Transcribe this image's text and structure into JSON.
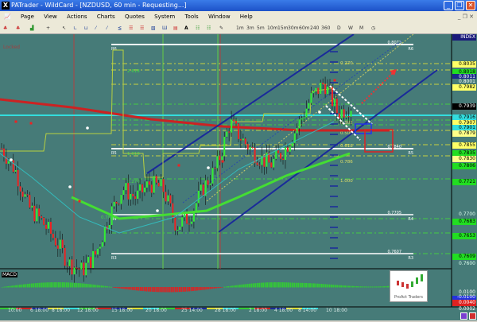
{
  "window": {
    "title": "PATrader - WildCard - [NZDUSD, 60 min - Requesting...]",
    "icon": "x-logo-icon"
  },
  "menu": [
    "Page",
    "View",
    "Actions",
    "Charts",
    "Quotes",
    "System",
    "Tools",
    "Window",
    "Help"
  ],
  "timeframes": [
    "1m",
    "3m",
    "5m",
    "10m",
    "15m",
    "30m",
    "60m",
    "240",
    "360",
    "D",
    "W",
    "M"
  ],
  "chart": {
    "symbol_label": "INDEX",
    "locked_label": "Locked",
    "background": "#467b78",
    "price_path": [
      0.7845,
      0.78,
      0.772,
      0.769,
      0.765,
      0.76,
      0.7585,
      0.762,
      0.77,
      0.776,
      0.774,
      0.777,
      0.776,
      0.768,
      0.77,
      0.776,
      0.7805,
      0.79,
      0.786,
      0.783,
      0.781,
      0.784,
      0.789,
      0.795,
      0.7985,
      0.792,
      0.7935
    ],
    "price_labels": [
      {
        "text": "0.8035",
        "color": "#ffff66"
      },
      {
        "text": "0.8018",
        "color": "#22dd22"
      },
      {
        "text": "0.8011",
        "color": "#1a2a8a"
      },
      {
        "text": "0.8001",
        "color": "#467b78"
      },
      {
        "text": "0.7982",
        "color": "#ffff66"
      },
      {
        "text": "0.7939",
        "color": "#000000"
      },
      {
        "text": "0.7916",
        "color": "#33dddd"
      },
      {
        "text": "0.7907",
        "color": "#ffff66"
      },
      {
        "text": "0.7901",
        "color": "#33dddd"
      },
      {
        "text": "0.7879",
        "color": "#ffff88"
      },
      {
        "text": "0.7855",
        "color": "#ffff66"
      },
      {
        "text": "0.7835",
        "color": "#22dd22"
      },
      {
        "text": "0.7830",
        "color": "#ffff88"
      },
      {
        "text": "0.7806",
        "color": "#22dd22"
      },
      {
        "text": "0.7721",
        "color": "#22dd22"
      },
      {
        "text": "0.7700",
        "color": ""
      },
      {
        "text": "0.7683",
        "color": "#22dd22"
      },
      {
        "text": "0.7653",
        "color": "#22dd22"
      },
      {
        "text": "0.7609",
        "color": "#22dd22"
      },
      {
        "text": "0.7600",
        "color": ""
      }
    ],
    "pivots": [
      {
        "name": "R6",
        "value": "0.8073"
      },
      {
        "name": "R5",
        "value": "0.7840"
      },
      {
        "name": "R4",
        "value": "0.7705"
      },
      {
        "name": "R3",
        "value": "0.7607"
      }
    ],
    "fib_left": [
      "2.618",
      "1.618",
      "1.270",
      "0.786"
    ],
    "fib_right": [
      "0.270",
      "0.382",
      "0.500",
      "0.618",
      "0.786",
      "1.000"
    ],
    "time_labels": [
      "10:00",
      "6 18:00",
      "8 18:00",
      "12 18:00",
      "15 18:00",
      "20 18:00",
      "25 14:00",
      "28 18:00",
      "2 18:00",
      "4 18:00",
      "8 14:00",
      "10 18:00"
    ]
  },
  "macd": {
    "title": "MACD",
    "labels": [
      "0.0100",
      "0.0040",
      "0.0002",
      "-0.0100"
    ]
  },
  "logo": {
    "text": "ProAct Traders"
  }
}
